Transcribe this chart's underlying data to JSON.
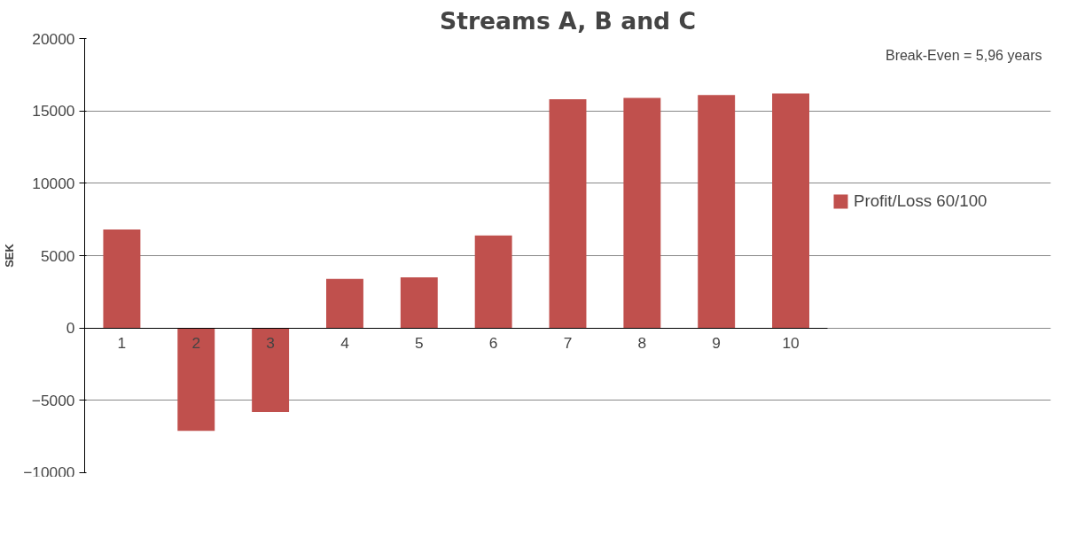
{
  "chart_data": {
    "type": "bar",
    "title": "Streams A, B and C",
    "ylabel": "SEK",
    "categories": [
      "1",
      "2",
      "3",
      "4",
      "5",
      "6",
      "7",
      "8",
      "9",
      "10"
    ],
    "series": [
      {
        "name": "Profit/Loss 60/100",
        "color": "#c0504d",
        "values": [
          6800,
          -7100,
          -5800,
          3400,
          3500,
          6400,
          15800,
          15900,
          16100,
          16200
        ]
      }
    ],
    "ylim": [
      -10000,
      20000
    ],
    "yticks": [
      -10000,
      -5000,
      0,
      5000,
      10000,
      15000,
      20000
    ],
    "grid": "y",
    "legend": "right",
    "annotations": [
      "Break-Even = 5,96 years"
    ]
  }
}
